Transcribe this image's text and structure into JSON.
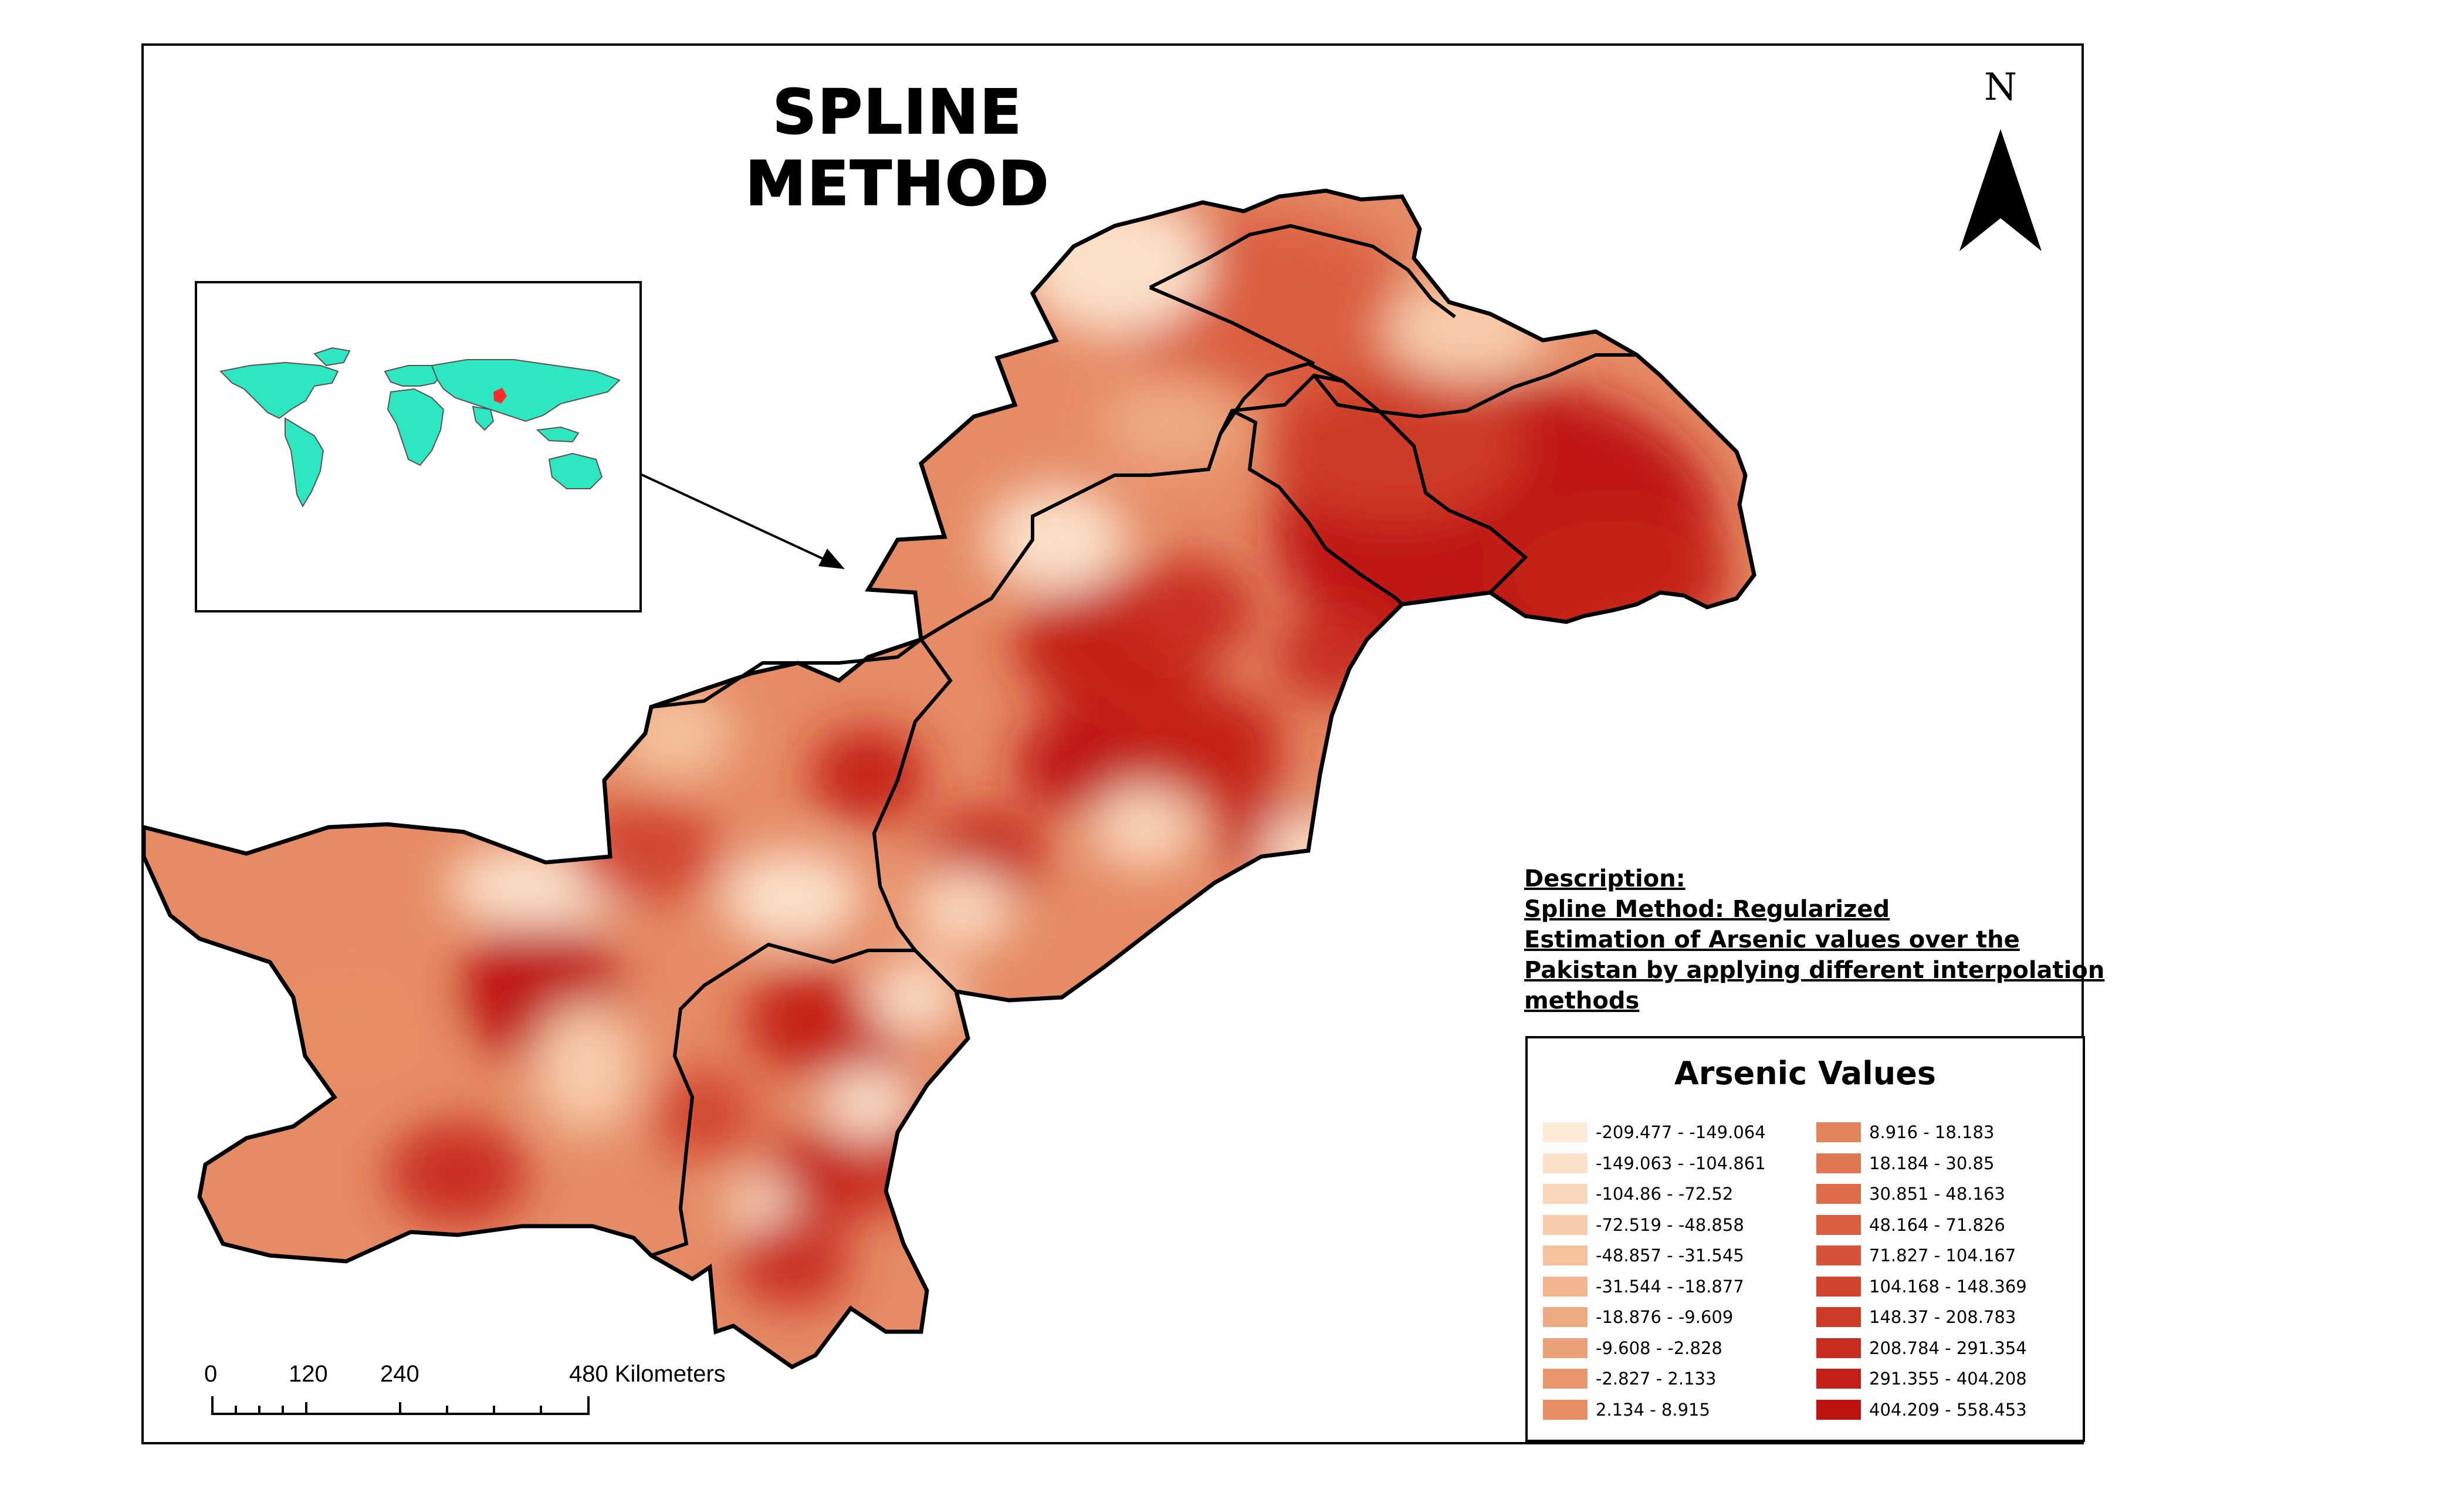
{
  "map": {
    "title": "SPLINE METHOD",
    "north_label": "N",
    "inset_caption": "",
    "description_lines": [
      "Description:",
      "Spline Method: Regularized",
      "Estimation of Arsenic values over the",
      "Pakistan  by applying different interpolation",
      "methods"
    ],
    "legend": {
      "title": "Arsenic Values",
      "items": [
        {
          "label": "-209.477 - -149.064",
          "color": "#fdebd9"
        },
        {
          "label": "-149.063 - -104.861",
          "color": "#fbe1c9"
        },
        {
          "label": "-104.86 - -72.52",
          "color": "#f9d6b9"
        },
        {
          "label": "-72.519 - -48.858",
          "color": "#f7ccaa"
        },
        {
          "label": "-48.857 - -31.545",
          "color": "#f4c29d"
        },
        {
          "label": "-31.544 - -18.877",
          "color": "#f1b690"
        },
        {
          "label": "-18.876 - -9.609",
          "color": "#eeaa83"
        },
        {
          "label": "-9.608 - -2.828",
          "color": "#eba078"
        },
        {
          "label": "-2.827 - 2.133",
          "color": "#e8966c"
        },
        {
          "label": "2.134 - 8.915",
          "color": "#e68d64"
        },
        {
          "label": "8.916 - 18.183",
          "color": "#e3835c"
        },
        {
          "label": "18.184 - 30.85",
          "color": "#e07652"
        },
        {
          "label": "30.851 - 48.163",
          "color": "#dd6a49"
        },
        {
          "label": "48.164 - 71.826",
          "color": "#da5e40"
        },
        {
          "label": "71.827 - 104.167",
          "color": "#d65238"
        },
        {
          "label": "104.168 - 148.369",
          "color": "#d24630"
        },
        {
          "label": "148.37 - 208.783",
          "color": "#ce3a28"
        },
        {
          "label": "208.784 - 291.354",
          "color": "#c92d20"
        },
        {
          "label": "291.355 - 404.208",
          "color": "#c42019"
        },
        {
          "label": "404.209 - 558.453",
          "color": "#bf1212"
        }
      ]
    },
    "scale": {
      "ticks": [
        "0",
        "120",
        "240",
        "480 Kilometers"
      ]
    },
    "colors": {
      "inset_land": "#2ee6c0",
      "inset_highlight": "#ff2a2a",
      "boundary": "#000000"
    }
  }
}
